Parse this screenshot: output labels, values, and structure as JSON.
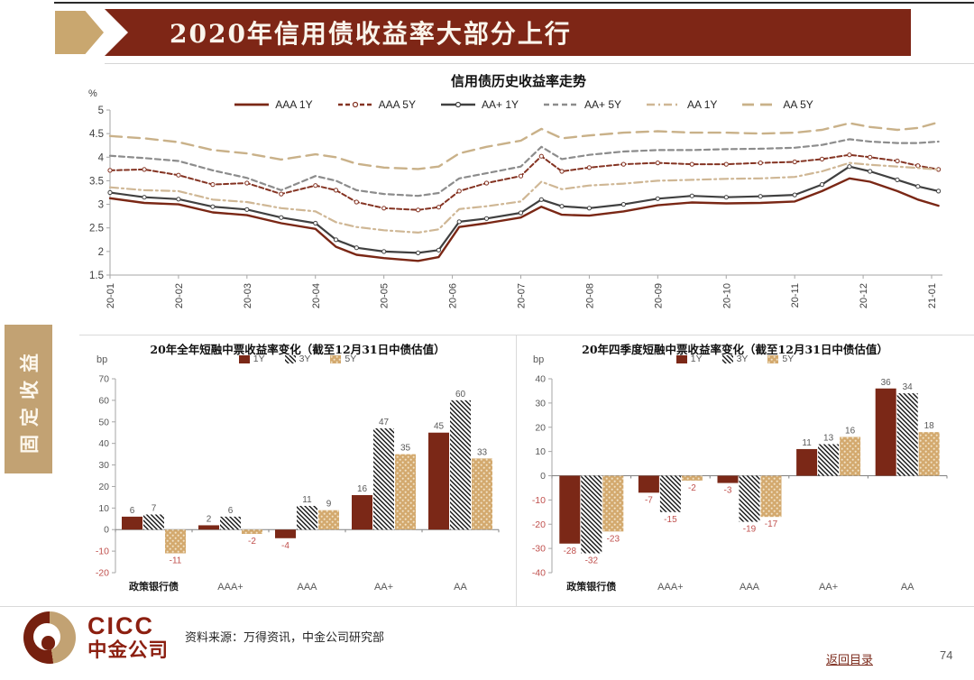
{
  "page": {
    "banner_title": "2020年信用债收益率大部分上行",
    "sidebar_label": "固定收益",
    "source_note": "资料来源：万得资讯，中金公司研究部",
    "back_link": "返回目录",
    "page_number": "74",
    "logo": {
      "text_en": "CICC",
      "text_cn": "中金公司"
    }
  },
  "colors": {
    "banner_maroon": "#7e2616",
    "banner_tan": "#c9a76f",
    "sidebar_tan": "#c2a273",
    "bar_1y": "#7b2817",
    "bar_5y_tan": "#d3a96e",
    "negative_label": "#c0504d",
    "tick_gray": "#595959",
    "axis_gray": "#a6a6a6"
  },
  "chart_data": [
    {
      "type": "line",
      "title": "信用债历史收益率走势",
      "ylabel": "%",
      "ylim": [
        1.5,
        5
      ],
      "ytick_values": [
        5,
        4.5,
        4,
        3.5,
        3,
        2.5,
        2,
        1.5
      ],
      "ytick_labels": [
        "5",
        "4.5",
        "4",
        "3.5",
        "3",
        "2.5",
        "2",
        "1.5"
      ],
      "x_labels": [
        "20-01",
        "20-02",
        "20-03",
        "20-04",
        "20-05",
        "20-06",
        "20-07",
        "20-08",
        "20-09",
        "20-10",
        "20-11",
        "20-12",
        "21-01"
      ],
      "x_months": [
        0,
        0.5,
        1,
        1.5,
        2,
        2.5,
        3,
        3.3,
        3.6,
        4,
        4.5,
        4.8,
        5.1,
        5.5,
        6,
        6.3,
        6.6,
        7,
        7.5,
        8,
        8.5,
        9,
        9.5,
        10,
        10.4,
        10.8,
        11.1,
        11.5,
        11.8,
        12.1
      ],
      "grid": false,
      "legend_position": "top",
      "series": [
        {
          "name": "AAA 1Y",
          "color": "#7a2715",
          "dash": "",
          "width": 2.4,
          "markers": false,
          "y": [
            3.13,
            3.03,
            3.0,
            2.83,
            2.77,
            2.6,
            2.48,
            2.1,
            1.93,
            1.86,
            1.8,
            1.88,
            2.52,
            2.6,
            2.72,
            2.95,
            2.78,
            2.76,
            2.85,
            2.98,
            3.04,
            3.02,
            3.03,
            3.06,
            3.28,
            3.55,
            3.48,
            3.28,
            3.1,
            2.97
          ]
        },
        {
          "name": "AAA 5Y",
          "color": "#843322",
          "dash": "5,3",
          "width": 2,
          "markers": true,
          "y": [
            3.72,
            3.74,
            3.62,
            3.42,
            3.45,
            3.22,
            3.4,
            3.3,
            3.05,
            2.92,
            2.88,
            2.94,
            3.28,
            3.45,
            3.6,
            4.02,
            3.7,
            3.78,
            3.85,
            3.88,
            3.85,
            3.85,
            3.88,
            3.9,
            3.96,
            4.05,
            4.0,
            3.92,
            3.82,
            3.74
          ]
        },
        {
          "name": "AA+ 1Y",
          "color": "#404040",
          "dash": "",
          "width": 2.2,
          "markers": true,
          "y": [
            3.25,
            3.15,
            3.11,
            2.95,
            2.89,
            2.72,
            2.6,
            2.25,
            2.08,
            2.0,
            1.97,
            2.03,
            2.63,
            2.7,
            2.82,
            3.1,
            2.96,
            2.92,
            3.0,
            3.12,
            3.18,
            3.15,
            3.17,
            3.2,
            3.42,
            3.8,
            3.7,
            3.52,
            3.38,
            3.28
          ]
        },
        {
          "name": "AA+ 5Y",
          "color": "#8c8c8c",
          "dash": "6,4",
          "width": 2.2,
          "markers": false,
          "y": [
            4.03,
            3.98,
            3.92,
            3.72,
            3.56,
            3.3,
            3.6,
            3.5,
            3.3,
            3.22,
            3.18,
            3.24,
            3.55,
            3.66,
            3.8,
            4.22,
            3.96,
            4.05,
            4.12,
            4.15,
            4.15,
            4.17,
            4.18,
            4.2,
            4.26,
            4.38,
            4.33,
            4.3,
            4.3,
            4.33
          ]
        },
        {
          "name": "AA 1Y",
          "color": "#cfb795",
          "dash": "9,4,2,4",
          "width": 2.2,
          "markers": false,
          "y": [
            3.36,
            3.3,
            3.28,
            3.1,
            3.05,
            2.92,
            2.85,
            2.62,
            2.52,
            2.45,
            2.4,
            2.47,
            2.9,
            2.96,
            3.06,
            3.48,
            3.32,
            3.4,
            3.44,
            3.5,
            3.52,
            3.54,
            3.55,
            3.58,
            3.7,
            3.88,
            3.84,
            3.8,
            3.77,
            3.74
          ]
        },
        {
          "name": "AA 5Y",
          "color": "#c9b189",
          "dash": "13,7",
          "width": 2.4,
          "markers": false,
          "y": [
            4.45,
            4.4,
            4.32,
            4.15,
            4.08,
            3.95,
            4.06,
            4.0,
            3.86,
            3.78,
            3.75,
            3.8,
            4.08,
            4.22,
            4.35,
            4.6,
            4.4,
            4.46,
            4.52,
            4.55,
            4.52,
            4.52,
            4.5,
            4.52,
            4.58,
            4.72,
            4.64,
            4.58,
            4.62,
            4.74
          ]
        }
      ]
    },
    {
      "type": "bar",
      "title": "20年全年短融中票收益率变化（截至12月31日中债估值）",
      "unit": "bp",
      "categories": [
        "政策银行债",
        "AAA+",
        "AAA",
        "AA+",
        "AA"
      ],
      "series": [
        {
          "name": "1Y",
          "fill": "solid",
          "values": [
            6,
            2,
            -4,
            16,
            45
          ]
        },
        {
          "name": "3Y",
          "fill": "hatch",
          "values": [
            7,
            6,
            11,
            47,
            60
          ]
        },
        {
          "name": "5Y",
          "fill": "dots",
          "values": [
            -11,
            -2,
            9,
            35,
            33
          ]
        }
      ],
      "ylim": [
        -20,
        70
      ],
      "ytick_values": [
        70,
        60,
        50,
        40,
        30,
        20,
        10,
        0,
        -10,
        -20
      ],
      "legend_position": "top"
    },
    {
      "type": "bar",
      "title": "20年四季度短融中票收益率变化（截至12月31日中债估值）",
      "unit": "bp",
      "categories": [
        "政策银行债",
        "AAA+",
        "AAA",
        "AA+",
        "AA"
      ],
      "series": [
        {
          "name": "1Y",
          "fill": "solid",
          "values": [
            -28,
            -7,
            -3,
            11,
            36
          ]
        },
        {
          "name": "3Y",
          "fill": "hatch",
          "values": [
            -32,
            -15,
            -19,
            13,
            34
          ]
        },
        {
          "name": "5Y",
          "fill": "dots",
          "values": [
            -23,
            -2,
            -17,
            16,
            18
          ]
        }
      ],
      "ylim": [
        -40,
        40
      ],
      "ytick_values": [
        40,
        30,
        20,
        10,
        0,
        -10,
        -20,
        -30,
        -40
      ],
      "legend_position": "top"
    }
  ]
}
